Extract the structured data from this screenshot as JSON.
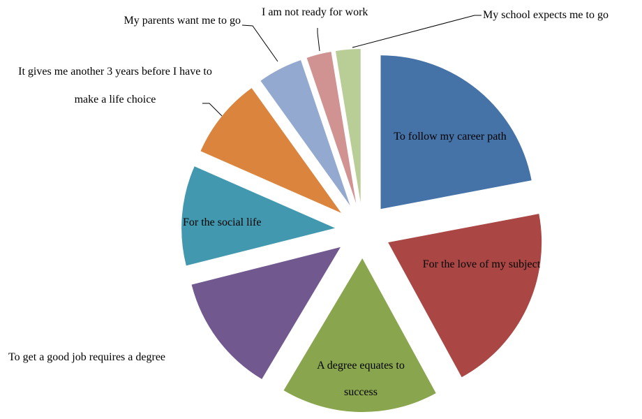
{
  "chart_data": {
    "type": "pie",
    "categories": [
      "To follow my career path",
      "For the love of my subject",
      "A degree equates to success",
      "To get a good job requires a degree",
      "For the social life",
      "It gives me another 3 years before I have to make a life choice",
      "My parents want me to go",
      "I am not ready for work",
      "My school expects me to go"
    ],
    "values": [
      22,
      20,
      16.5,
      12.5,
      10.5,
      8.5,
      4.7,
      2.6,
      2.6
    ],
    "colors": [
      "#4572a7",
      "#aa4643",
      "#89a54e",
      "#71588f",
      "#4198af",
      "#db843d",
      "#93a9cf",
      "#d19392",
      "#b9cd96"
    ],
    "exploded": true
  }
}
